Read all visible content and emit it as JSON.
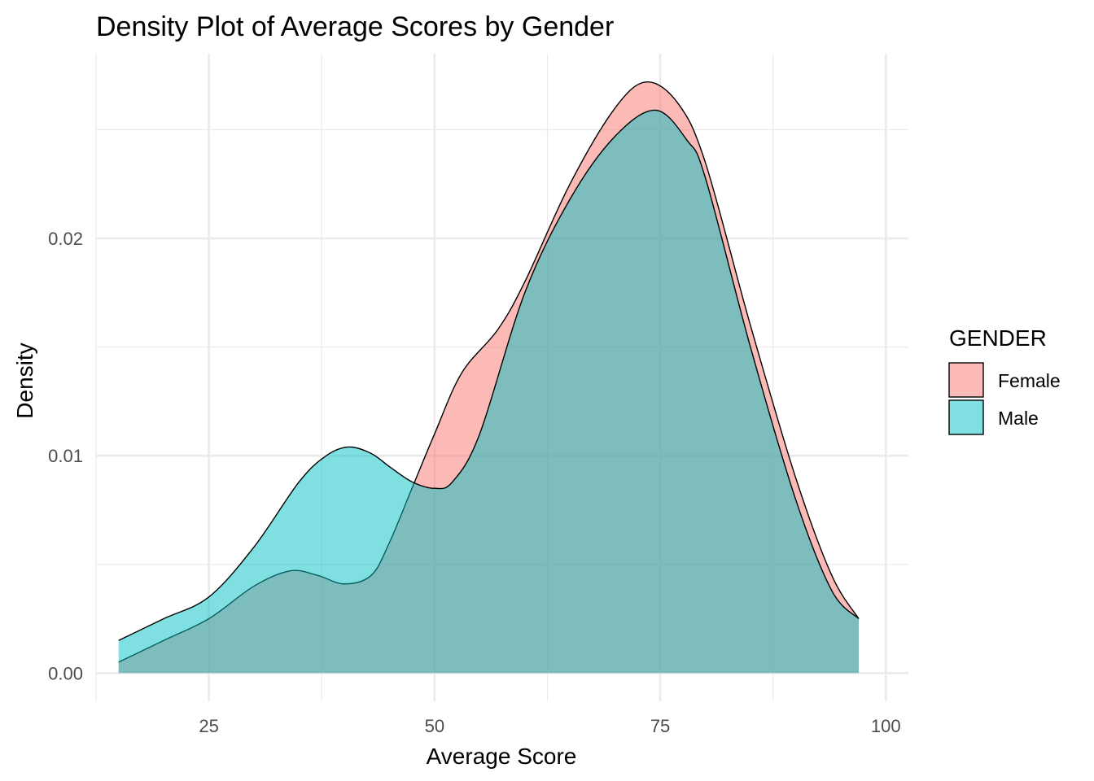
{
  "chart_data": {
    "type": "area",
    "title": "Density Plot of Average Scores by Gender",
    "xlabel": "Average Score",
    "ylabel": "Density",
    "xlim": [
      12.5,
      102.5
    ],
    "ylim": [
      -0.0013,
      0.0285
    ],
    "x_ticks": [
      25,
      50,
      75,
      100
    ],
    "x_tick_labels": [
      "25",
      "50",
      "75",
      "100"
    ],
    "y_ticks": [
      0.0,
      0.01,
      0.02
    ],
    "y_tick_labels": [
      "0.00",
      "0.01",
      "0.02"
    ],
    "grid": true,
    "legend": {
      "title": "GENDER",
      "position": "right"
    },
    "series": [
      {
        "name": "Female",
        "color": "#F8766D",
        "x": [
          15,
          20,
          25,
          30,
          34,
          37,
          40,
          43,
          45,
          47.5,
          50,
          53,
          57,
          60,
          65,
          70,
          73.5,
          77,
          80,
          85,
          90,
          94,
          97
        ],
        "y": [
          0.0005,
          0.0015,
          0.0025,
          0.004,
          0.0047,
          0.0045,
          0.0041,
          0.0045,
          0.006,
          0.0085,
          0.011,
          0.0138,
          0.0158,
          0.018,
          0.0225,
          0.026,
          0.0272,
          0.0262,
          0.0235,
          0.016,
          0.009,
          0.0045,
          0.0025
        ]
      },
      {
        "name": "Male",
        "color": "#00BFC4",
        "x": [
          15,
          20,
          25,
          30,
          35,
          38,
          40.5,
          43,
          45,
          47.5,
          50,
          52,
          55,
          60,
          65,
          70,
          74.5,
          78,
          80,
          85,
          90,
          94,
          97
        ],
        "y": [
          0.0015,
          0.0025,
          0.0035,
          0.0058,
          0.0088,
          0.01,
          0.0104,
          0.0101,
          0.0095,
          0.0088,
          0.0085,
          0.0088,
          0.011,
          0.0175,
          0.0218,
          0.0247,
          0.0259,
          0.0245,
          0.0228,
          0.015,
          0.008,
          0.0038,
          0.0025
        ]
      }
    ]
  }
}
